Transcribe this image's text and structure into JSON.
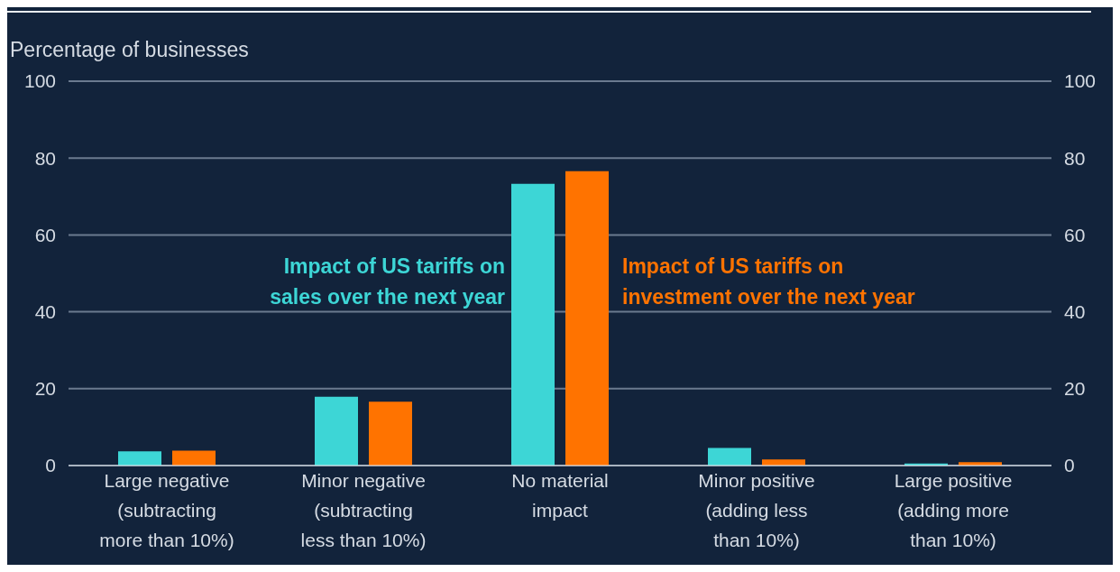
{
  "chart_data": {
    "type": "bar",
    "ylabel": "Percentage of businesses",
    "categories": [
      "Large negative (subtracting more than 10%)",
      "Minor negative (subtracting less than 10%)",
      "No material impact",
      "Minor positive (adding less than 10%)",
      "Large positive (adding more than 10%)"
    ],
    "series": [
      {
        "name": "Impact of US tariffs on sales over the next year",
        "color": "#3dd6d6",
        "values": [
          3.7,
          17.9,
          73.3,
          4.6,
          0.5
        ]
      },
      {
        "name": "Impact of US tariffs on investment over the next year",
        "color": "#ff7300",
        "values": [
          3.9,
          16.6,
          76.6,
          1.6,
          0.9
        ]
      }
    ],
    "ylim": [
      0,
      100
    ],
    "yticks": [
      0,
      20,
      40,
      60,
      80,
      100
    ],
    "y2lim": [
      0,
      100
    ],
    "y2ticks": [
      0,
      20,
      40,
      60,
      80,
      100
    ],
    "grid": "y"
  }
}
